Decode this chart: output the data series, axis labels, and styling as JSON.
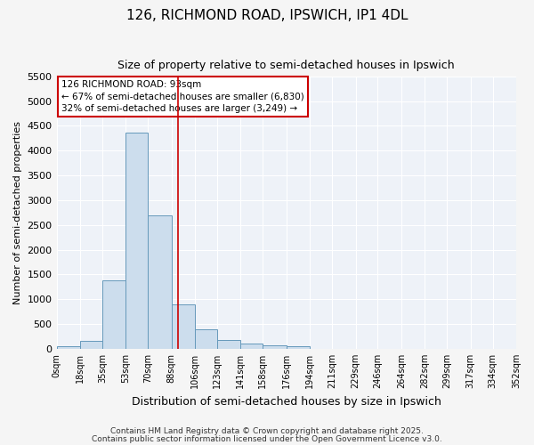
{
  "title": "126, RICHMOND ROAD, IPSWICH, IP1 4DL",
  "subtitle": "Size of property relative to semi-detached houses in Ipswich",
  "xlabel": "Distribution of semi-detached houses by size in Ipswich",
  "ylabel": "Number of semi-detached properties",
  "bar_color": "#ccdded",
  "bar_edge_color": "#6699bb",
  "background_color": "#eef2f8",
  "grid_color": "#ffffff",
  "annotation_line_color": "#cc0000",
  "annotation_box_color": "#cc0000",
  "annotation_text": "126 RICHMOND ROAD: 93sqm\n← 67% of semi-detached houses are smaller (6,830)\n32% of semi-detached houses are larger (3,249) →",
  "property_size": 93,
  "bin_edges": [
    0,
    18,
    35,
    53,
    70,
    88,
    106,
    123,
    141,
    158,
    176,
    194,
    211,
    229,
    246,
    264,
    282,
    299,
    317,
    334,
    352
  ],
  "bin_labels": [
    "0sqm",
    "18sqm",
    "35sqm",
    "53sqm",
    "70sqm",
    "88sqm",
    "106sqm",
    "123sqm",
    "141sqm",
    "158sqm",
    "176sqm",
    "194sqm",
    "211sqm",
    "229sqm",
    "246sqm",
    "264sqm",
    "282sqm",
    "299sqm",
    "317sqm",
    "334sqm",
    "352sqm"
  ],
  "counts": [
    50,
    160,
    1390,
    4370,
    2700,
    890,
    390,
    175,
    105,
    65,
    55,
    0,
    0,
    0,
    0,
    0,
    0,
    0,
    0,
    0
  ],
  "ylim": [
    0,
    5500
  ],
  "yticks": [
    0,
    500,
    1000,
    1500,
    2000,
    2500,
    3000,
    3500,
    4000,
    4500,
    5000,
    5500
  ],
  "footer_line1": "Contains HM Land Registry data © Crown copyright and database right 2025.",
  "footer_line2": "Contains public sector information licensed under the Open Government Licence v3.0."
}
